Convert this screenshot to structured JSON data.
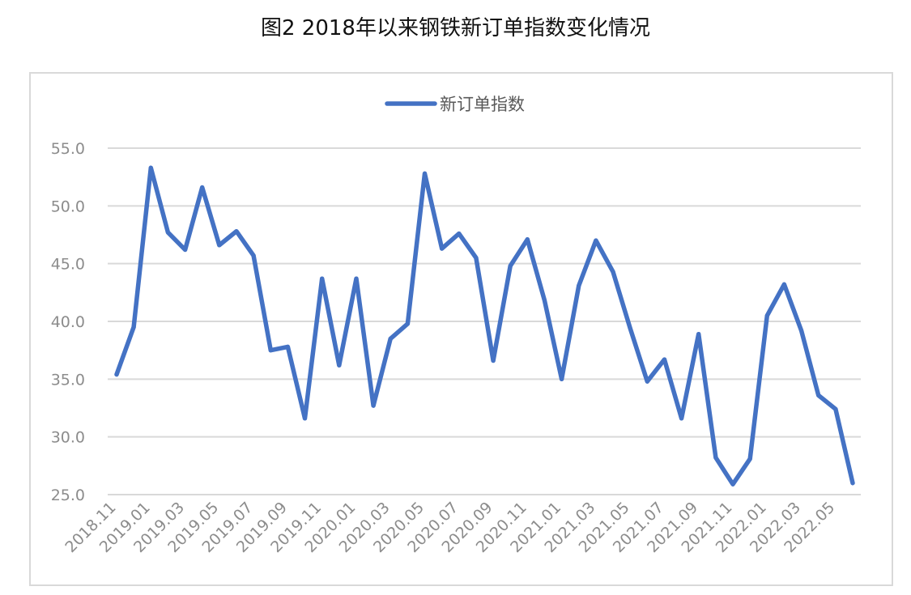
{
  "title": "图2  2018年以来钢铁新订单指数变化情况",
  "chart_data": {
    "type": "line",
    "title": "图2  2018年以来钢铁新订单指数变化情况",
    "xlabel": "",
    "ylabel": "",
    "ylim": [
      25,
      55
    ],
    "yticks": [
      "25.0",
      "30.0",
      "35.0",
      "40.0",
      "45.0",
      "50.0",
      "55.0"
    ],
    "grid": true,
    "legend_position": "top-center",
    "x": [
      "2018.11",
      "2018.12",
      "2019.01",
      "2019.02",
      "2019.03",
      "2019.04",
      "2019.05",
      "2019.06",
      "2019.07",
      "2019.08",
      "2019.09",
      "2019.10",
      "2019.11",
      "2019.12",
      "2020.01",
      "2020.02",
      "2020.03",
      "2020.04",
      "2020.05",
      "2020.06",
      "2020.07",
      "2020.08",
      "2020.09",
      "2020.10",
      "2020.11",
      "2020.12",
      "2021.01",
      "2021.02",
      "2021.03",
      "2021.04",
      "2021.05",
      "2021.06",
      "2021.07",
      "2021.08",
      "2021.09",
      "2021.10",
      "2021.11",
      "2021.12",
      "2022.01",
      "2022.02",
      "2022.03",
      "2022.04",
      "2022.05",
      "2022.06"
    ],
    "xtick_labels": [
      "2018.11",
      "2019.01",
      "2019.03",
      "2019.05",
      "2019.07",
      "2019.09",
      "2019.11",
      "2020.01",
      "2020.03",
      "2020.05",
      "2020.07",
      "2020.09",
      "2020.11",
      "2021.01",
      "2021.03",
      "2021.05",
      "2021.07",
      "2021.09",
      "2021.11",
      "2022.01",
      "2022.03",
      "2022.05"
    ],
    "series": [
      {
        "name": "新订单指数",
        "color": "#4472c4",
        "values": [
          35.4,
          39.5,
          53.3,
          47.7,
          46.2,
          51.6,
          46.6,
          47.8,
          45.7,
          37.5,
          37.8,
          31.6,
          43.7,
          36.2,
          43.7,
          32.7,
          38.5,
          39.8,
          52.8,
          46.3,
          47.6,
          45.5,
          36.6,
          44.8,
          47.1,
          41.8,
          35.0,
          43.1,
          47.0,
          44.3,
          39.4,
          34.8,
          36.7,
          31.6,
          38.9,
          28.2,
          25.9,
          28.1,
          40.5,
          43.2,
          39.2,
          33.6,
          32.4,
          26.0
        ]
      }
    ]
  }
}
